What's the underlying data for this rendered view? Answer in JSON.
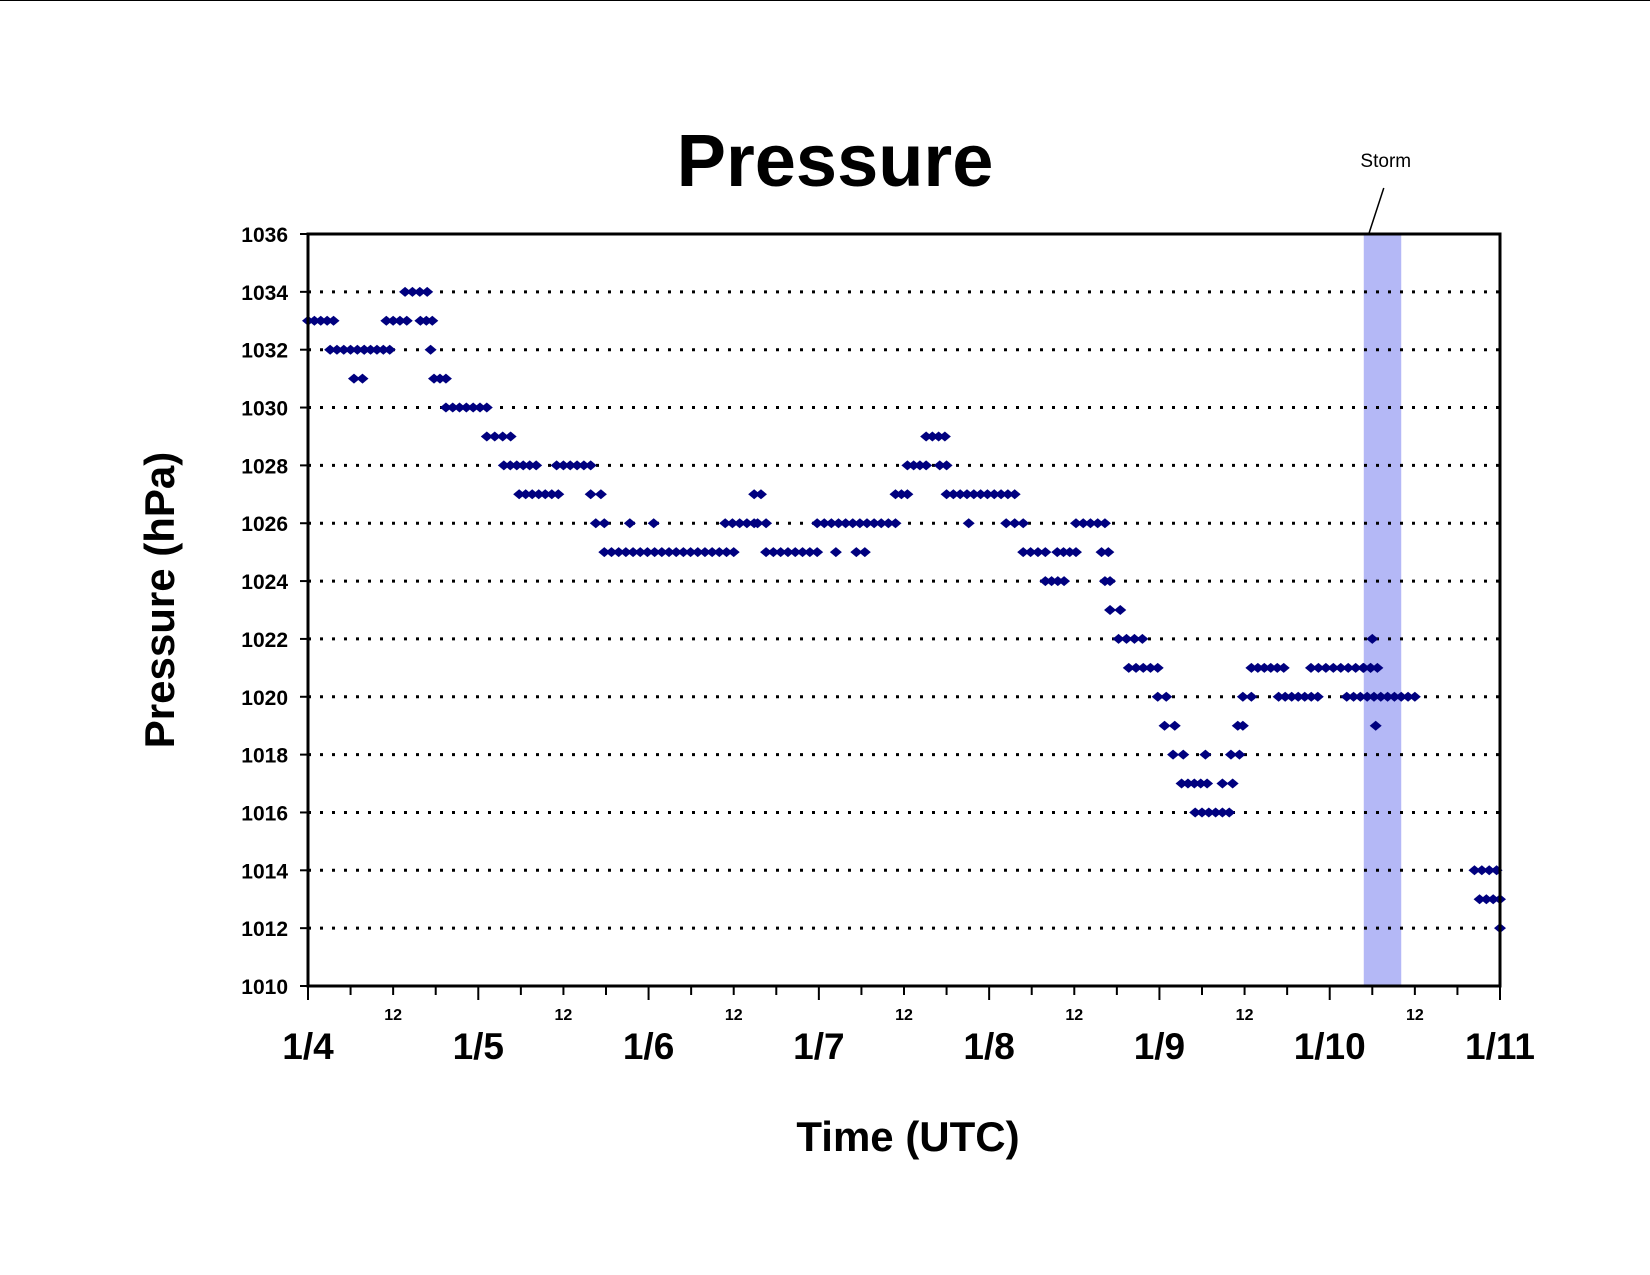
{
  "chart_data": {
    "type": "scatter",
    "title": "Pressure",
    "xlabel": "Time (UTC)",
    "ylabel": "Pressure (hPa)",
    "x_unit": "day offset from 1/4 00 UTC",
    "xlim": [
      0,
      7
    ],
    "ylim": [
      1010,
      1036
    ],
    "y_ticks": [
      1010,
      1012,
      1014,
      1016,
      1018,
      1020,
      1022,
      1024,
      1026,
      1028,
      1030,
      1032,
      1034,
      1036
    ],
    "y_gridlines": "dotted",
    "x_major_labels": [
      "1/4",
      "1/5",
      "1/6",
      "1/7",
      "1/8",
      "1/9",
      "1/10",
      "1/11"
    ],
    "x_minor_label": "12",
    "marker_color": "#00007f",
    "storm_band": {
      "label": "Storm",
      "x_start": 6.2,
      "x_end": 6.42,
      "color": "#b4b8f6"
    },
    "series": [
      {
        "segments": [
          [
            0.0,
            0.15,
            1033
          ],
          [
            0.13,
            0.33,
            1032
          ],
          [
            0.27,
            0.32,
            1031
          ],
          [
            0.33,
            0.48,
            1032
          ],
          [
            0.46,
            0.58,
            1033
          ],
          [
            0.57,
            0.7,
            1034
          ],
          [
            0.66,
            0.73,
            1033
          ],
          [
            0.72,
            0.73,
            1032
          ],
          [
            0.74,
            0.81,
            1031
          ],
          [
            0.81,
            1.05,
            1030
          ],
          [
            1.05,
            1.19,
            1029
          ],
          [
            1.15,
            1.34,
            1028
          ],
          [
            1.24,
            1.47,
            1027
          ],
          [
            1.46,
            1.66,
            1028
          ],
          [
            1.66,
            1.72,
            1027
          ],
          [
            1.69,
            1.74,
            1026
          ],
          [
            1.74,
            2.5,
            1025
          ],
          [
            1.89,
            1.89,
            1026
          ],
          [
            2.03,
            2.03,
            1026
          ],
          [
            2.45,
            2.62,
            1026
          ],
          [
            2.62,
            2.66,
            1027
          ],
          [
            2.64,
            2.69,
            1026
          ],
          [
            2.69,
            2.99,
            1025
          ],
          [
            2.99,
            3.45,
            1026
          ],
          [
            3.1,
            3.1,
            1025
          ],
          [
            3.22,
            3.27,
            1025
          ],
          [
            3.45,
            3.52,
            1027
          ],
          [
            3.52,
            3.63,
            1028
          ],
          [
            3.63,
            3.74,
            1029
          ],
          [
            3.71,
            3.75,
            1028
          ],
          [
            3.75,
            4.15,
            1027
          ],
          [
            3.88,
            3.88,
            1026
          ],
          [
            4.1,
            4.2,
            1026
          ],
          [
            4.2,
            4.33,
            1025
          ],
          [
            4.33,
            4.44,
            1024
          ],
          [
            4.4,
            4.51,
            1025
          ],
          [
            4.51,
            4.68,
            1026
          ],
          [
            4.66,
            4.7,
            1025
          ],
          [
            4.68,
            4.71,
            1024
          ],
          [
            4.71,
            4.77,
            1023
          ],
          [
            4.76,
            4.9,
            1022
          ],
          [
            4.82,
            4.99,
            1021
          ],
          [
            4.99,
            5.04,
            1020
          ],
          [
            5.03,
            5.09,
            1019
          ],
          [
            5.08,
            5.14,
            1018
          ],
          [
            5.13,
            5.28,
            1017
          ],
          [
            5.21,
            5.41,
            1016
          ],
          [
            5.27,
            5.27,
            1018
          ],
          [
            5.37,
            5.43,
            1017
          ],
          [
            5.42,
            5.47,
            1018
          ],
          [
            5.46,
            5.49,
            1019
          ],
          [
            5.49,
            5.54,
            1020
          ],
          [
            5.54,
            5.73,
            1021
          ],
          [
            5.7,
            5.93,
            1020
          ],
          [
            5.89,
            6.24,
            1021
          ],
          [
            6.1,
            6.5,
            1020
          ],
          [
            6.2,
            6.28,
            1021
          ],
          [
            6.25,
            6.25,
            1022
          ],
          [
            6.27,
            6.27,
            1019
          ],
          [
            6.85,
            6.98,
            1014
          ],
          [
            6.88,
            7.0,
            1013
          ],
          [
            7.0,
            7.0,
            1012
          ]
        ]
      }
    ]
  }
}
